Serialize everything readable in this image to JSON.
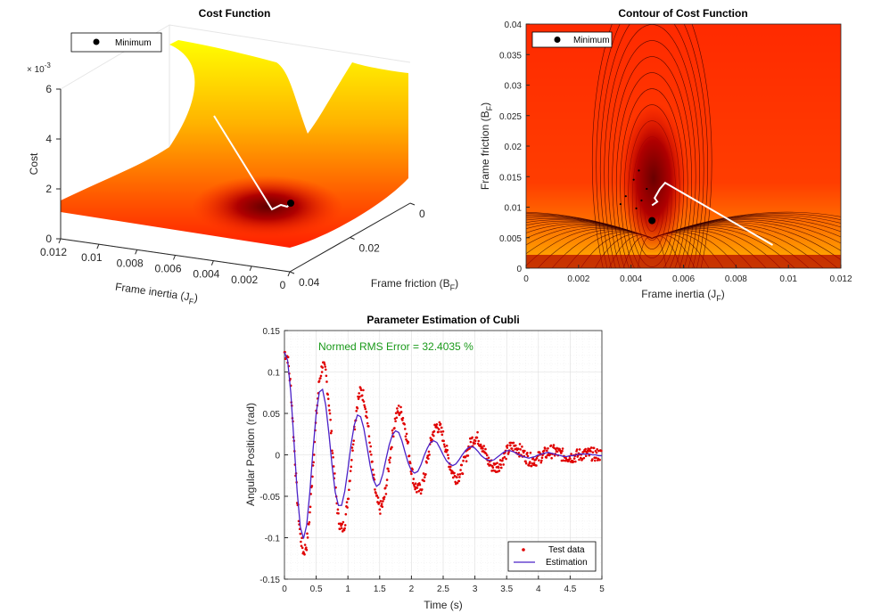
{
  "chart_data": [
    {
      "type": "surface3d",
      "title": "Cost Function",
      "xlabel": "Frame inertia (J",
      "xlabel_sub": "F",
      "ylabel": "Frame friction (B",
      "ylabel_sub": "F",
      "zlabel": "Cost",
      "z_exponent": "× 10",
      "z_exponent_power": "-3",
      "xlim": [
        0,
        0.012
      ],
      "ylim": [
        0,
        0.04
      ],
      "zlim": [
        0,
        0.006
      ],
      "x_ticks": [
        "0.012",
        "0.01",
        "0.008",
        "0.006",
        "0.004",
        "0.002",
        "0"
      ],
      "y_ticks": [
        "0",
        "0.02",
        "0.04"
      ],
      "z_ticks": [
        "0",
        "2",
        "4",
        "6"
      ],
      "legend": {
        "position": "top-left",
        "entries": [
          "Minimum"
        ]
      },
      "minimum": {
        "x": 0.0048,
        "y": 0.0075
      },
      "colormap": "autumn (red to yellow)"
    },
    {
      "type": "contour",
      "title": "Contour of Cost Function",
      "xlabel": "Frame inertia (J",
      "xlabel_sub": "F",
      "ylabel": "Frame friction (B",
      "ylabel_sub": "F",
      "xlim": [
        0,
        0.012
      ],
      "ylim": [
        0,
        0.04
      ],
      "x_ticks": [
        "0",
        "0.002",
        "0.004",
        "0.006",
        "0.008",
        "0.01",
        "0.012"
      ],
      "y_ticks": [
        "0",
        "0.005",
        "0.01",
        "0.015",
        "0.02",
        "0.025",
        "0.03",
        "0.035",
        "0.04"
      ],
      "legend": {
        "position": "top-left",
        "entries": [
          "Minimum"
        ]
      },
      "minimum": {
        "x": 0.0048,
        "y": 0.0078
      },
      "optimization_path": [
        [
          0.0094,
          0.0038
        ],
        [
          0.0053,
          0.014
        ],
        [
          0.0051,
          0.013
        ],
        [
          0.0049,
          0.0115
        ],
        [
          0.005,
          0.0109
        ],
        [
          0.0048,
          0.0103
        ]
      ]
    },
    {
      "type": "line",
      "title": "Parameter Estimation of Cubli",
      "xlabel": "Time (s)",
      "ylabel": "Angular Position (rad)",
      "xlim": [
        0,
        5
      ],
      "ylim": [
        -0.15,
        0.15
      ],
      "x_ticks": [
        "0",
        "0.5",
        "1",
        "1.5",
        "2",
        "2.5",
        "3",
        "3.5",
        "4",
        "4.5",
        "5"
      ],
      "y_ticks": [
        "-0.15",
        "-0.1",
        "-0.05",
        "0",
        "0.05",
        "0.1",
        "0.15"
      ],
      "grid": true,
      "annotation": "Normed RMS Error = 32.4035 %",
      "legend": {
        "position": "bottom-right",
        "entries": [
          "Test data",
          "Estimation"
        ]
      },
      "series": [
        {
          "name": "Test data",
          "style": "red dots",
          "x": [
            0.0,
            0.05,
            0.1,
            0.15,
            0.2,
            0.25,
            0.3,
            0.35,
            0.4,
            0.45,
            0.5,
            0.55,
            0.6,
            0.65,
            0.7,
            0.75,
            0.8,
            0.85,
            0.9,
            0.95,
            1.0,
            1.05,
            1.1,
            1.15,
            1.2,
            1.25,
            1.3,
            1.35,
            1.4,
            1.45,
            1.5,
            1.55,
            1.6,
            1.65,
            1.7,
            1.75,
            1.8,
            1.85,
            1.9,
            1.95,
            2.0,
            2.05,
            2.1,
            2.15,
            2.2,
            2.25,
            2.3,
            2.35,
            2.4,
            2.45,
            2.5,
            2.55,
            2.6,
            2.65,
            2.7,
            2.75,
            2.8,
            2.85,
            2.9,
            2.95,
            3.0,
            3.05,
            3.1,
            3.15,
            3.2,
            3.25,
            3.3,
            3.35,
            3.4,
            3.45,
            3.5,
            3.55,
            3.6,
            3.65,
            3.7,
            3.75,
            3.8,
            3.85,
            3.9,
            3.95,
            4.0,
            4.05,
            4.1,
            4.15,
            4.2,
            4.25,
            4.3,
            4.35,
            4.4,
            4.45,
            4.5,
            4.55,
            4.6,
            4.65,
            4.7,
            4.75,
            4.8,
            4.85,
            4.9,
            4.95,
            5.0
          ],
          "y": [
            0.124,
            0.118,
            0.081,
            0.016,
            -0.052,
            -0.098,
            -0.118,
            -0.108,
            -0.071,
            -0.012,
            0.046,
            0.09,
            0.109,
            0.099,
            0.064,
            0.013,
            -0.039,
            -0.077,
            -0.091,
            -0.082,
            -0.053,
            -0.01,
            0.032,
            0.064,
            0.077,
            0.071,
            0.046,
            0.01,
            -0.027,
            -0.054,
            -0.065,
            -0.06,
            -0.04,
            -0.009,
            0.022,
            0.045,
            0.054,
            0.05,
            0.034,
            0.009,
            -0.017,
            -0.036,
            -0.043,
            -0.04,
            -0.028,
            -0.008,
            0.013,
            0.029,
            0.035,
            0.032,
            0.022,
            0.006,
            -0.01,
            -0.022,
            -0.027,
            -0.025,
            -0.017,
            -0.004,
            0.008,
            0.017,
            0.021,
            0.02,
            0.014,
            0.004,
            -0.006,
            -0.012,
            -0.015,
            -0.014,
            -0.01,
            -0.004,
            0.003,
            0.008,
            0.01,
            0.009,
            0.006,
            0.002,
            -0.002,
            -0.005,
            -0.006,
            -0.006,
            -0.004,
            -0.001,
            0.001,
            0.003,
            0.004,
            0.004,
            0.003,
            0.001,
            -0.001,
            -0.002,
            -0.002,
            -0.002,
            -0.001,
            0.0,
            0.001,
            0.001,
            0.001,
            0.001,
            0.0,
            0.0,
            0.0
          ]
        },
        {
          "name": "Estimation",
          "style": "blue line",
          "x": [
            0.0,
            0.05,
            0.1,
            0.15,
            0.2,
            0.25,
            0.3,
            0.35,
            0.4,
            0.45,
            0.5,
            0.55,
            0.6,
            0.65,
            0.7,
            0.75,
            0.8,
            0.85,
            0.9,
            0.95,
            1.0,
            1.05,
            1.1,
            1.15,
            1.2,
            1.25,
            1.3,
            1.35,
            1.4,
            1.45,
            1.5,
            1.55,
            1.6,
            1.65,
            1.7,
            1.75,
            1.8,
            1.85,
            1.9,
            1.95,
            2.0,
            2.05,
            2.1,
            2.15,
            2.2,
            2.25,
            2.3,
            2.35,
            2.4,
            2.45,
            2.5,
            2.55,
            2.6,
            2.65,
            2.7,
            2.75,
            2.8,
            2.85,
            2.9,
            2.95,
            3.0,
            3.05,
            3.1,
            3.15,
            3.2,
            3.25,
            3.3,
            3.35,
            3.4,
            3.45,
            3.5,
            3.55,
            3.6,
            3.65,
            3.7,
            3.75,
            3.8,
            3.85,
            3.9,
            3.95,
            4.0,
            4.05,
            4.1,
            4.15,
            4.2,
            4.25,
            4.3,
            4.35,
            4.4,
            4.45,
            4.5,
            4.55,
            4.6,
            4.65,
            4.7,
            4.75,
            4.8,
            4.85,
            4.9,
            4.95,
            5.0
          ],
          "y": [
            0.124,
            0.114,
            0.075,
            0.016,
            -0.044,
            -0.087,
            -0.101,
            -0.085,
            -0.045,
            0.006,
            0.05,
            0.076,
            0.079,
            0.06,
            0.026,
            -0.013,
            -0.045,
            -0.061,
            -0.061,
            -0.044,
            -0.017,
            0.013,
            0.036,
            0.048,
            0.046,
            0.032,
            0.01,
            -0.013,
            -0.03,
            -0.038,
            -0.035,
            -0.023,
            -0.005,
            0.012,
            0.024,
            0.029,
            0.027,
            0.017,
            0.003,
            -0.01,
            -0.019,
            -0.022,
            -0.02,
            -0.012,
            -0.001,
            0.008,
            0.015,
            0.017,
            0.015,
            0.008,
            0.0,
            -0.007,
            -0.011,
            -0.013,
            -0.011,
            -0.006,
            0.0,
            0.005,
            0.009,
            0.01,
            0.008,
            0.004,
            -0.001,
            -0.004,
            -0.006,
            -0.007,
            -0.006,
            -0.003,
            0.0,
            0.003,
            0.005,
            0.005,
            0.004,
            0.002,
            0.0,
            -0.002,
            -0.003,
            -0.004,
            -0.003,
            -0.002,
            0.0,
            0.001,
            0.002,
            0.003,
            0.002,
            0.001,
            0.0,
            -0.001,
            -0.002,
            -0.002,
            -0.001,
            -0.001,
            0.0,
            0.001,
            0.001,
            0.001,
            0.001,
            0.0,
            0.0,
            -0.001,
            -0.001
          ]
        }
      ]
    }
  ]
}
